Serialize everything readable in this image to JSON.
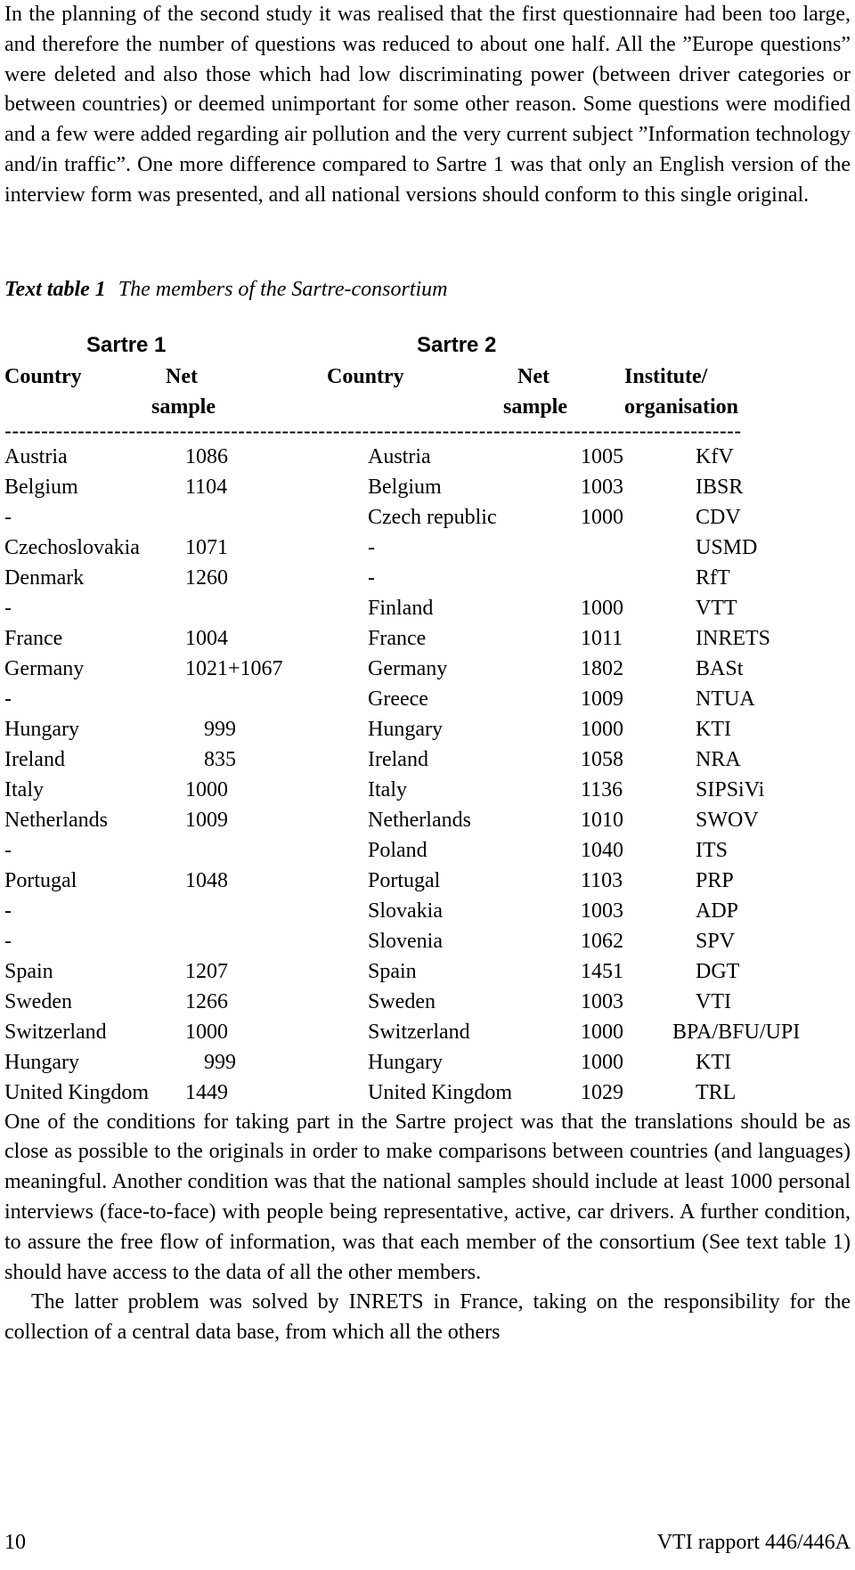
{
  "paragraphs": {
    "intro": "In the planning of the second study it was realised that the first questionnaire had been too large, and therefore the number of questions was reduced to about one half. All the ”Europe questions” were deleted and also those which had low discriminating power (between driver categories or between countries) or deemed unimportant for some other reason. Some questions were modified and a few were added regarding air pollution and the very current subject ”Information technology and/in traffic”. One more difference compared to Sartre 1 was that only an English version of the interview form was presented, and all national versions should conform to this single original.",
    "conditions": "One of the conditions for taking part in the Sartre project was that the translations should be as close as possible to the originals in order to make comparisons between countries (and languages) meaningful. Another condition was that the national samples should include at least 1000 personal interviews (face-to-face) with people being representative, active, car drivers. A further condition, to assure the free flow of information, was that each member of the consortium (See text table 1) should have access to the data of all the other members.",
    "latter": "The latter problem was solved by INRETS in France, taking on the responsibility for the collection of a central data base, from which all the others"
  },
  "table": {
    "label": "Text table 1",
    "caption": "The members of the Sartre-consortium",
    "study1": "Sartre 1",
    "study2": "Sartre 2",
    "headers": {
      "country1": "Country",
      "net1_line1": "Net",
      "net1_line2": "sample",
      "country2": "Country",
      "net2_line1": "Net",
      "net2_line2": "sample",
      "inst_line1": "Institute/",
      "inst_line2": "organisation"
    },
    "separator": "-----------------------------------------------------------------------------------------------------",
    "rows": [
      [
        "Austria",
        "1086",
        "Austria",
        "1005",
        "KfV"
      ],
      [
        "Belgium",
        "1104",
        "Belgium",
        "1003",
        "IBSR"
      ],
      [
        "-",
        "",
        "Czech republic",
        "1000",
        "CDV"
      ],
      [
        "Czechoslovakia",
        "1071",
        "-",
        "",
        "USMD"
      ],
      [
        "Denmark",
        "1260",
        "-",
        "",
        "RfT"
      ],
      [
        "-",
        "",
        "Finland",
        "1000",
        "VTT"
      ],
      [
        "France",
        "1004",
        "France",
        "1011",
        "INRETS"
      ],
      [
        "Germany",
        "1021+1067",
        "Germany",
        "1802",
        "BASt"
      ],
      [
        "-",
        "",
        "Greece",
        "1009",
        "NTUA"
      ],
      [
        "Hungary",
        "999",
        "Hungary",
        "1000",
        "KTI"
      ],
      [
        "Ireland",
        "835",
        "Ireland",
        "1058",
        "NRA"
      ],
      [
        "Italy",
        "1000",
        "Italy",
        "1136",
        "SIPSiVi"
      ],
      [
        "Netherlands",
        "1009",
        "Netherlands",
        "1010",
        "SWOV"
      ],
      [
        "-",
        "",
        "Poland",
        "1040",
        "ITS"
      ],
      [
        "Portugal",
        "1048",
        "Portugal",
        "1103",
        "PRP"
      ],
      [
        "-",
        "",
        "Slovakia",
        "1003",
        "ADP"
      ],
      [
        "-",
        "",
        "Slovenia",
        "1062",
        "SPV"
      ],
      [
        "Spain",
        "1207",
        "Spain",
        "1451",
        "DGT"
      ],
      [
        "Sweden",
        "1266",
        "Sweden",
        "1003",
        "VTI"
      ],
      [
        "Switzerland",
        "1000",
        "Switzerland",
        "1000",
        "BPA/BFU/UPI"
      ],
      [
        "Hungary",
        "999",
        "Hungary",
        "1000",
        "KTI"
      ],
      [
        "United Kingdom",
        "1449",
        "United Kingdom",
        "1029",
        "TRL"
      ]
    ]
  },
  "footer": {
    "page_number": "10",
    "report": "VTI rapport 446/446A"
  }
}
